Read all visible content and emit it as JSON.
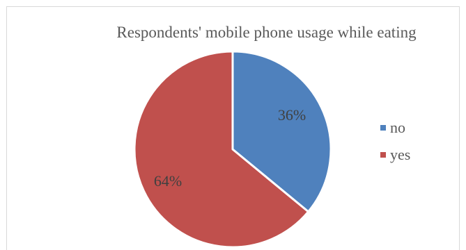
{
  "chart_data": {
    "type": "pie",
    "title": "Respondents' mobile phone usage while eating",
    "categories": [
      "no",
      "yes"
    ],
    "values": [
      36,
      64
    ],
    "data_labels": [
      "36%",
      "64%"
    ],
    "colors": [
      "#4f81bd",
      "#c0504d"
    ],
    "legend_placement": "right"
  }
}
